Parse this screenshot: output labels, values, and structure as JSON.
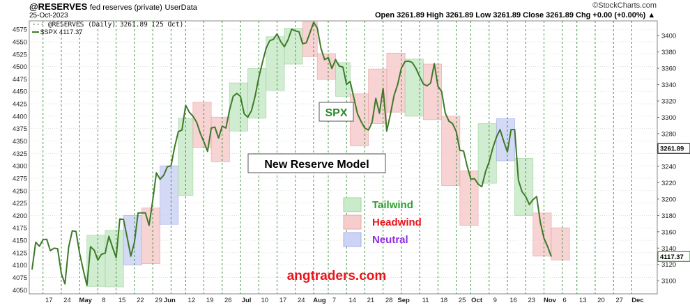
{
  "header": {
    "symbol": "@RESERVES",
    "description": "fed reserves (private)",
    "source": "UserData",
    "date": "25-Oct-2023",
    "ohlc": "Open 3261.89  High 3261.89  Low 3261.89  Close 3261.89  Chg +0.00 (+0.00%) ▲",
    "brand": "©StockCharts.com"
  },
  "legend": {
    "reserves": "@RESERVES (Daily) 3261.89 (25 Oct)",
    "spx": "$SPX 4117.37"
  },
  "annotations": {
    "spx_box": "SPX",
    "model_box": "New Reserve Model",
    "watermark": "angtraders.com",
    "key": [
      {
        "label": "Tailwind",
        "color": "#2ca02c"
      },
      {
        "label": "Headwind",
        "color": "#e8141c"
      },
      {
        "label": "Neutral",
        "color": "#8e2de2"
      }
    ]
  },
  "colors": {
    "tailwind_fill": "#c9ebc9",
    "headwind_fill": "#f6cccc",
    "neutral_fill": "#cdd3f4",
    "line": "#3d7a28",
    "vgrid": "#2e8b2e",
    "hgrid": "#d0d0d0"
  },
  "chart_data": {
    "type": "line",
    "left_axis": {
      "ticks": [
        4050,
        4075,
        4100,
        4125,
        4150,
        4175,
        4200,
        4225,
        4250,
        4275,
        4300,
        4325,
        4350,
        4375,
        4400,
        4425,
        4450,
        4475,
        4500,
        4525,
        4550,
        4575
      ],
      "range": [
        4042,
        4592
      ]
    },
    "right_axis": {
      "ticks": [
        3100,
        3120,
        3140,
        3160,
        3180,
        3200,
        3220,
        3240,
        3260,
        3280,
        3300,
        3320,
        3340,
        3360,
        3380,
        3400
      ],
      "range": [
        3084,
        3418
      ],
      "last_value": "3261.89"
    },
    "spx_last_value": "4117.37",
    "x_labels": [
      {
        "label": "17",
        "i": 5,
        "bold": false
      },
      {
        "label": "24",
        "i": 10,
        "bold": false
      },
      {
        "label": "May",
        "i": 15,
        "bold": true
      },
      {
        "label": "8",
        "i": 20,
        "bold": false
      },
      {
        "label": "15",
        "i": 25,
        "bold": false
      },
      {
        "label": "22",
        "i": 30,
        "bold": false
      },
      {
        "label": "29",
        "i": 35,
        "bold": false
      },
      {
        "label": "Jun",
        "i": 38,
        "bold": true
      },
      {
        "label": "12",
        "i": 44,
        "bold": false
      },
      {
        "label": "19",
        "i": 49,
        "bold": false
      },
      {
        "label": "26",
        "i": 54,
        "bold": false
      },
      {
        "label": "Jul",
        "i": 59,
        "bold": true
      },
      {
        "label": "10",
        "i": 64,
        "bold": false
      },
      {
        "label": "17",
        "i": 69,
        "bold": false
      },
      {
        "label": "24",
        "i": 74,
        "bold": false
      },
      {
        "label": "Aug",
        "i": 79,
        "bold": true
      },
      {
        "label": "7",
        "i": 83,
        "bold": false
      },
      {
        "label": "14",
        "i": 88,
        "bold": false
      },
      {
        "label": "21",
        "i": 93,
        "bold": false
      },
      {
        "label": "28",
        "i": 98,
        "bold": false
      },
      {
        "label": "Sep",
        "i": 102,
        "bold": true
      },
      {
        "label": "11",
        "i": 108,
        "bold": false
      },
      {
        "label": "18",
        "i": 113,
        "bold": false
      },
      {
        "label": "25",
        "i": 118,
        "bold": false
      },
      {
        "label": "Oct",
        "i": 122,
        "bold": true
      },
      {
        "label": "9",
        "i": 127,
        "bold": false
      },
      {
        "label": "16",
        "i": 132,
        "bold": false
      },
      {
        "label": "23",
        "i": 137,
        "bold": false
      },
      {
        "label": "Nov",
        "i": 142,
        "bold": true
      },
      {
        "label": "6",
        "i": 146,
        "bold": false
      },
      {
        "label": "13",
        "i": 151,
        "bold": false
      },
      {
        "label": "20",
        "i": 156,
        "bold": false
      },
      {
        "label": "27",
        "i": 161,
        "bold": false
      },
      {
        "label": "Dec",
        "i": 166,
        "bold": true
      }
    ],
    "week_lines": [
      3,
      8,
      13,
      18,
      23,
      28,
      33,
      38,
      42,
      47,
      52,
      57,
      62,
      67,
      72,
      77,
      81,
      86,
      91,
      96,
      101,
      106,
      111,
      116,
      120,
      125,
      130,
      135,
      140,
      145,
      149,
      154,
      159,
      164
    ],
    "regimes": [
      {
        "type": "tailwind",
        "i0": 15,
        "i1": 20,
        "y0": 4057,
        "y1": 4160
      },
      {
        "type": "tailwind",
        "i0": 20,
        "i1": 25,
        "y0": 4056,
        "y1": 4170
      },
      {
        "type": "neutral",
        "i0": 25,
        "i1": 30,
        "y0": 4100,
        "y1": 4200
      },
      {
        "type": "headwind",
        "i0": 30,
        "i1": 35,
        "y0": 4103,
        "y1": 4215
      },
      {
        "type": "neutral",
        "i0": 35,
        "i1": 40,
        "y0": 4182,
        "y1": 4300
      },
      {
        "type": "tailwind",
        "i0": 40,
        "i1": 44,
        "y0": 4240,
        "y1": 4396
      },
      {
        "type": "headwind",
        "i0": 44,
        "i1": 49,
        "y0": 4337,
        "y1": 4428
      },
      {
        "type": "headwind",
        "i0": 49,
        "i1": 54,
        "y0": 4308,
        "y1": 4398
      },
      {
        "type": "tailwind",
        "i0": 54,
        "i1": 59,
        "y0": 4370,
        "y1": 4467
      },
      {
        "type": "tailwind",
        "i0": 59,
        "i1": 64,
        "y0": 4396,
        "y1": 4496
      },
      {
        "type": "tailwind",
        "i0": 64,
        "i1": 69,
        "y0": 4452,
        "y1": 4560
      },
      {
        "type": "tailwind",
        "i0": 69,
        "i1": 74,
        "y0": 4505,
        "y1": 4577
      },
      {
        "type": "headwind",
        "i0": 74,
        "i1": 78,
        "y0": 4520,
        "y1": 4590
      },
      {
        "type": "headwind",
        "i0": 78,
        "i1": 83,
        "y0": 4474,
        "y1": 4526
      },
      {
        "type": "tailwind",
        "i0": 83,
        "i1": 87,
        "y0": 4440,
        "y1": 4508
      },
      {
        "type": "headwind",
        "i0": 87,
        "i1": 92,
        "y0": 4340,
        "y1": 4445
      },
      {
        "type": "headwind",
        "i0": 92,
        "i1": 97,
        "y0": 4385,
        "y1": 4495
      },
      {
        "type": "headwind",
        "i0": 97,
        "i1": 102,
        "y0": 4408,
        "y1": 4527
      },
      {
        "type": "tailwind",
        "i0": 102,
        "i1": 107,
        "y0": 4400,
        "y1": 4515
      },
      {
        "type": "headwind",
        "i0": 107,
        "i1": 112,
        "y0": 4393,
        "y1": 4505
      },
      {
        "type": "headwind",
        "i0": 112,
        "i1": 117,
        "y0": 4260,
        "y1": 4400
      },
      {
        "type": "headwind",
        "i0": 117,
        "i1": 122,
        "y0": 4180,
        "y1": 4290
      },
      {
        "type": "tailwind",
        "i0": 122,
        "i1": 127,
        "y0": 4265,
        "y1": 4385
      },
      {
        "type": "neutral",
        "i0": 127,
        "i1": 132,
        "y0": 4310,
        "y1": 4395
      },
      {
        "type": "tailwind",
        "i0": 132,
        "i1": 137,
        "y0": 4200,
        "y1": 4315
      },
      {
        "type": "headwind",
        "i0": 137,
        "i1": 142,
        "y0": 4118,
        "y1": 4205
      },
      {
        "type": "headwind",
        "i0": 142,
        "i1": 147,
        "y0": 4110,
        "y1": 4175
      }
    ],
    "series": [
      {
        "name": "$SPX",
        "values": [
          4091,
          4146,
          4138,
          4151,
          4152,
          4129,
          4134,
          4133,
          4083,
          4062,
          4136,
          4169,
          4168,
          4124,
          4090,
          4059,
          4137,
          4130,
          4110,
          4122,
          4124,
          4158,
          4136,
          4115,
          4193,
          4192,
          4156,
          4118,
          4146,
          4205,
          4205,
          4205,
          4180,
          4230,
          4286,
          4273,
          4281,
          4298,
          4300,
          4338,
          4369,
          4372,
          4422,
          4408,
          4400,
          4388,
          4366,
          4348,
          4329,
          4376,
          4378,
          4356,
          4380,
          4376,
          4412,
          4440,
          4446,
          4440,
          4405,
          4398,
          4411,
          4440,
          4478,
          4508,
          4537,
          4552,
          4555,
          4566,
          4550,
          4540,
          4554,
          4575,
          4572,
          4570,
          4546,
          4548,
          4568,
          4589,
          4578,
          4537,
          4514,
          4518,
          4496,
          4514,
          4501,
          4499,
          4464,
          4470,
          4437,
          4405,
          4389,
          4376,
          4372,
          4388,
          4436,
          4406,
          4456,
          4370,
          4404,
          4442,
          4464,
          4497,
          4510,
          4511,
          4508,
          4496,
          4480,
          4465,
          4461,
          4467,
          4506,
          4460,
          4450,
          4406,
          4390,
          4385,
          4369,
          4331,
          4330,
          4299,
          4273,
          4274,
          4263,
          4258,
          4288,
          4308,
          4336,
          4358,
          4373,
          4349,
          4328,
          4373,
          4373,
          4271,
          4248,
          4238,
          4222,
          4232,
          4238,
          4186,
          4154,
          4137,
          4117
        ]
      },
      {
        "name": "@RESERVES",
        "values": []
      }
    ]
  }
}
